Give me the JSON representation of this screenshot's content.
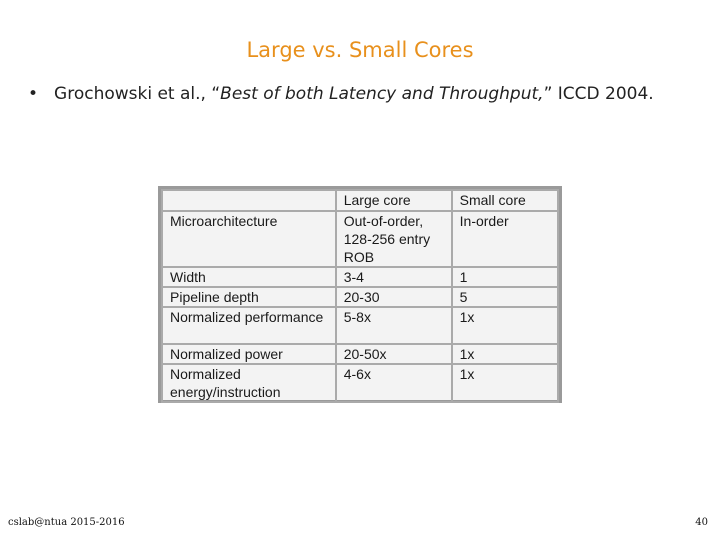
{
  "slide": {
    "title": "Large vs. Small Cores",
    "bullet_marker": "•",
    "bullet": {
      "prefix": "Grochowski et al., “",
      "italic": "Best of both Latency and Throughput,",
      "suffix": "” ICCD 2004."
    },
    "table": {
      "headers": [
        "",
        "Large core",
        "Small core"
      ],
      "rows": [
        [
          "Microarchitecture",
          "Out-of-order, 128-256 entry ROB",
          "In-order"
        ],
        [
          "Width",
          "3-4",
          "1"
        ],
        [
          "Pipeline depth",
          "20-30",
          "5"
        ],
        [
          "Normalized performance",
          "5-8x",
          "1x"
        ],
        [
          "Normalized power",
          "20-50x",
          "1x"
        ],
        [
          "Normalized energy/instruction",
          "4-6x",
          "1x"
        ]
      ]
    },
    "footer_left": "cslab@ntua 2015-2016",
    "page_number": "40"
  }
}
